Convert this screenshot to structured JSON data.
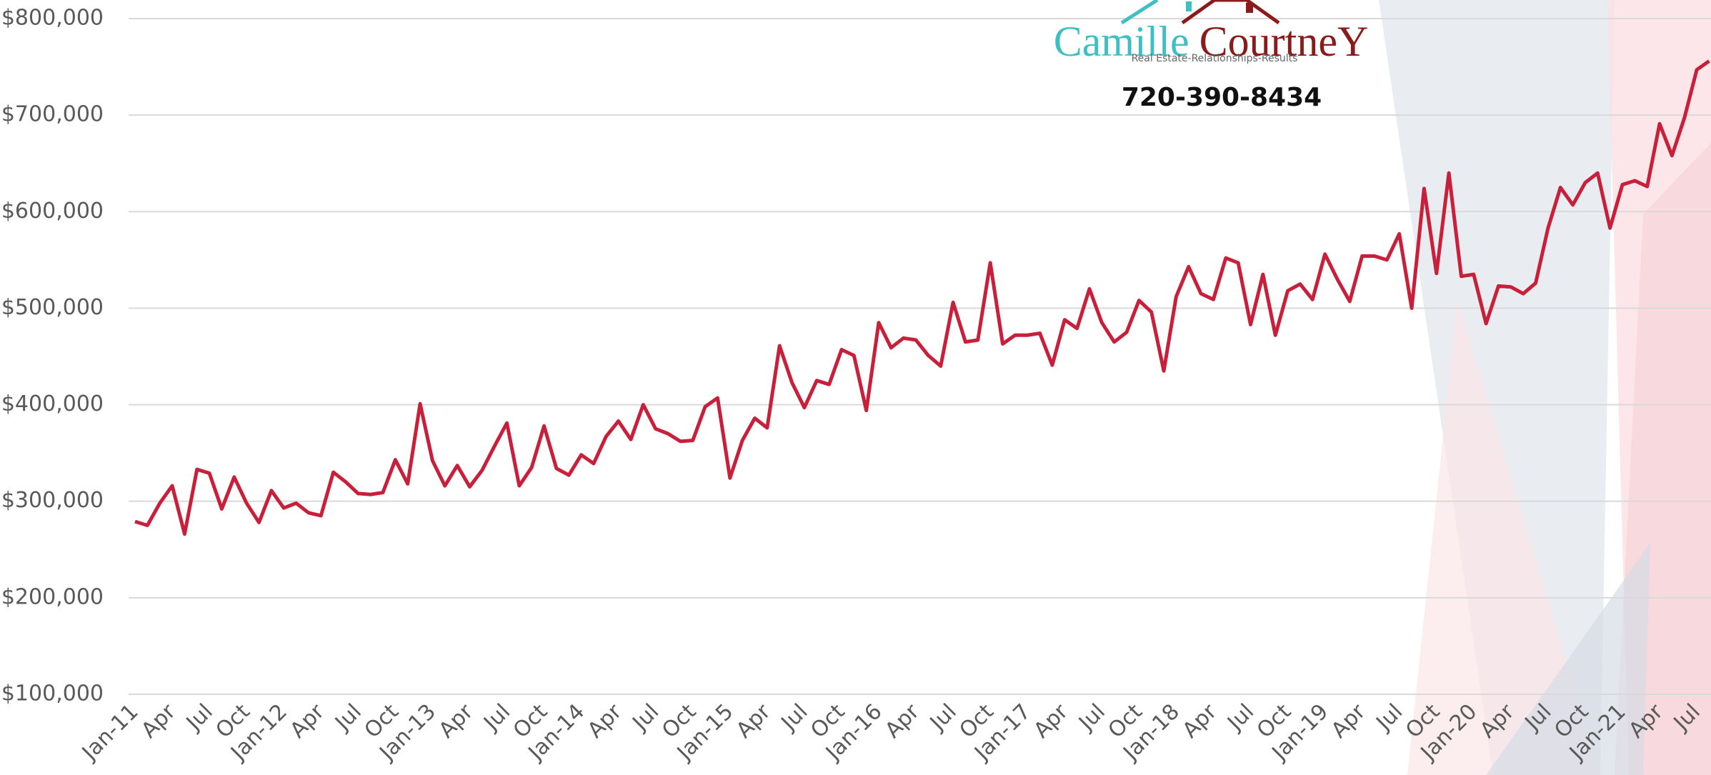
{
  "header": {
    "brand_first": "Camille",
    "brand_second": "CourtneY",
    "tagline": "Real Estate-Relationships-Results",
    "phone": "720-390-8434"
  },
  "chart_data": {
    "type": "line",
    "color": "#c8203a",
    "grid": true,
    "ylim": [
      100000,
      800000
    ],
    "yticks": [
      {
        "value": 100000,
        "label": "$100,000"
      },
      {
        "value": 200000,
        "label": "$200,000"
      },
      {
        "value": 300000,
        "label": "$300,000"
      },
      {
        "value": 400000,
        "label": "$400,000"
      },
      {
        "value": 500000,
        "label": "$500,000"
      },
      {
        "value": 600000,
        "label": "$600,000"
      },
      {
        "value": 700000,
        "label": "$700,000"
      },
      {
        "value": 800000,
        "label": "$800,000"
      }
    ],
    "categories": [
      "Jan-11",
      null,
      null,
      "Apr",
      null,
      null,
      "Jul",
      null,
      null,
      "Oct",
      null,
      null,
      "Jan-12",
      null,
      null,
      "Apr",
      null,
      null,
      "Jul",
      null,
      null,
      "Oct",
      null,
      null,
      "Jan-13",
      null,
      null,
      "Apr",
      null,
      null,
      "Jul",
      null,
      null,
      "Oct",
      null,
      null,
      "Jan-14",
      null,
      null,
      "Apr",
      null,
      null,
      "Jul",
      null,
      null,
      "Oct",
      null,
      null,
      "Jan-15",
      null,
      null,
      "Apr",
      null,
      null,
      "Jul",
      null,
      null,
      "Oct",
      null,
      null,
      "Jan-16",
      null,
      null,
      "Apr",
      null,
      null,
      "Jul",
      null,
      null,
      "Oct",
      null,
      null,
      "Jan-17",
      null,
      null,
      "Apr",
      null,
      null,
      "Jul",
      null,
      null,
      "Oct",
      null,
      null,
      "Jan-18",
      null,
      null,
      "Apr",
      null,
      null,
      "Jul",
      null,
      null,
      "Oct",
      null,
      null,
      "Jan-19",
      null,
      null,
      "Apr",
      null,
      null,
      "Jul",
      null,
      null,
      "Oct",
      null,
      null,
      "Jan-20",
      null,
      null,
      "Apr",
      null,
      null,
      "Jul",
      null,
      null,
      "Oct",
      null,
      null,
      "Jan-21",
      null,
      null,
      "Apr",
      null,
      null,
      "Jul",
      null
    ],
    "values": [
      279000,
      275000,
      298000,
      316000,
      266000,
      333000,
      329000,
      292000,
      325000,
      298000,
      278000,
      311000,
      293000,
      298000,
      288000,
      285000,
      330000,
      320000,
      308000,
      307000,
      309000,
      343000,
      318000,
      401000,
      342000,
      316000,
      337000,
      315000,
      332000,
      357000,
      381000,
      316000,
      335000,
      378000,
      334000,
      327000,
      348000,
      339000,
      367000,
      383000,
      364000,
      400000,
      375000,
      370000,
      362000,
      363000,
      398000,
      407000,
      324000,
      363000,
      386000,
      376000,
      461000,
      423000,
      397000,
      425000,
      421000,
      457000,
      451000,
      394000,
      485000,
      459000,
      469000,
      467000,
      451000,
      440000,
      506000,
      465000,
      467000,
      547000,
      463000,
      472000,
      472000,
      474000,
      441000,
      488000,
      479000,
      520000,
      485000,
      465000,
      475000,
      508000,
      496000,
      435000,
      512000,
      543000,
      515000,
      509000,
      552000,
      547000,
      483000,
      535000,
      472000,
      518000,
      525000,
      509000,
      556000,
      530000,
      507000,
      554000,
      554000,
      550000,
      577000,
      500000,
      624000,
      536000,
      640000,
      533000,
      535000,
      484000,
      523000,
      522000,
      515000,
      526000,
      583000,
      625000,
      607000,
      630000,
      640000,
      583000,
      628000,
      632000,
      626000,
      691000,
      658000,
      697000,
      747000,
      756000
    ]
  }
}
